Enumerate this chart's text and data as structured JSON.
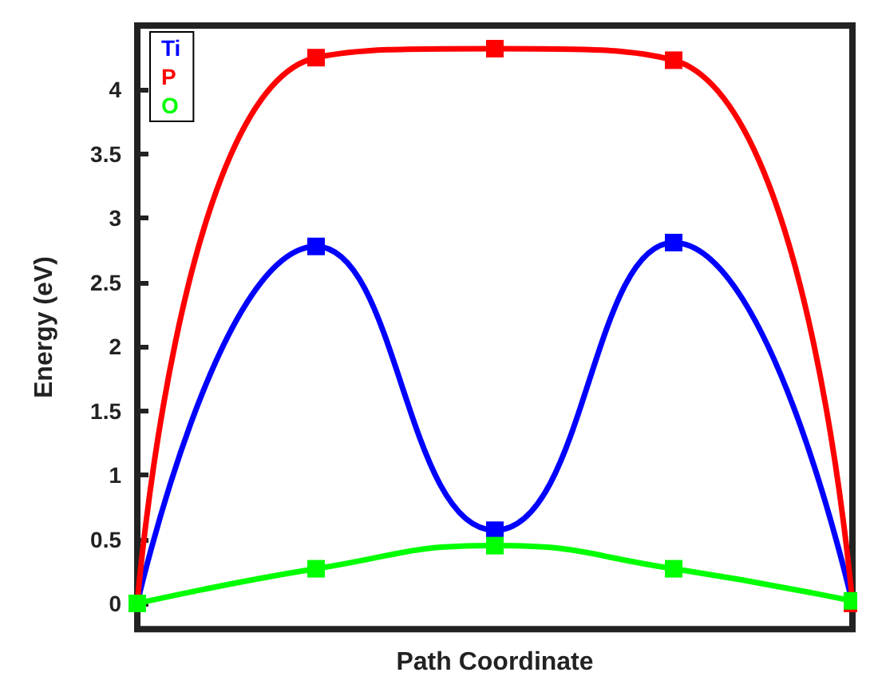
{
  "chart_data": {
    "type": "line",
    "xlabel": "Path Coordinate",
    "ylabel": "Energy (eV)",
    "categories": [
      null,
      null,
      null,
      null,
      null
    ],
    "series": [
      {
        "name": "Ti",
        "color": "#0000ff",
        "values": [
          0,
          2.78,
          0.57,
          2.81,
          0
        ]
      },
      {
        "name": "P",
        "color": "#ff0000",
        "values": [
          0,
          4.25,
          4.32,
          4.23,
          0
        ]
      },
      {
        "name": "O",
        "color": "#00ff00",
        "values": [
          0,
          0.27,
          0.45,
          0.27,
          0.02
        ]
      }
    ],
    "ylim": [
      -0.2,
      4.5
    ],
    "yticks": [
      0,
      0.5,
      1,
      1.5,
      2,
      2.5,
      3,
      3.5,
      4
    ],
    "grid": false,
    "legend": "top left",
    "marker": "square",
    "line_style": "solid"
  }
}
